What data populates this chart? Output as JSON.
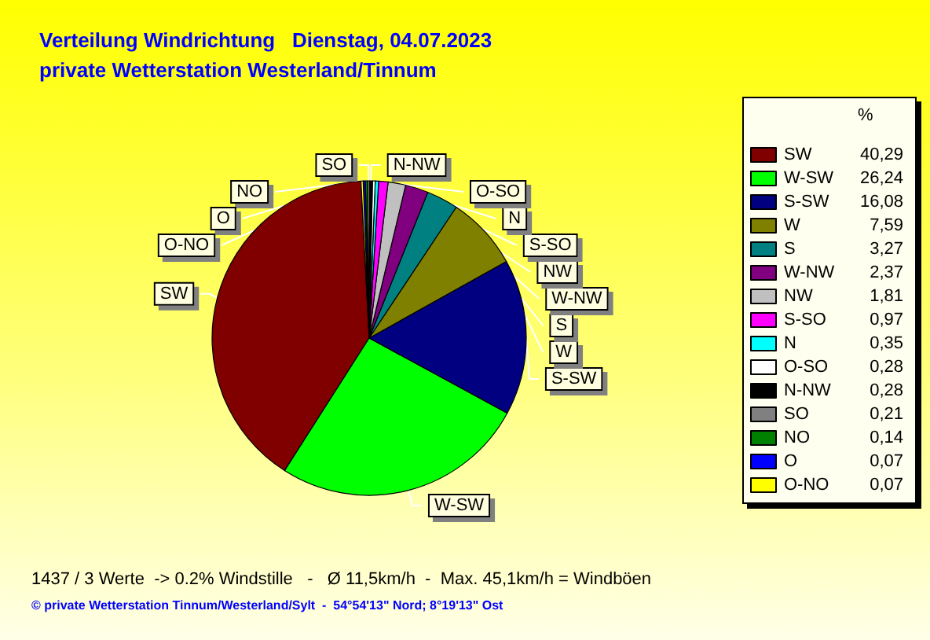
{
  "chart_data": {
    "type": "pie",
    "title": "Verteilung Windrichtung   Dienstag, 04.07.2023",
    "subtitle": "private Wetterstation Westerland/Tinnum",
    "legend_title": "%",
    "legend": "right",
    "categories": [
      "SW",
      "W-SW",
      "S-SW",
      "W",
      "S",
      "W-NW",
      "NW",
      "S-SO",
      "N",
      "O-SO",
      "N-NW",
      "SO",
      "NO",
      "O",
      "O-NO"
    ],
    "values": [
      40.29,
      26.24,
      16.08,
      7.59,
      3.27,
      2.37,
      1.81,
      0.97,
      0.35,
      0.28,
      0.28,
      0.21,
      0.14,
      0.07,
      0.07
    ],
    "value_labels": [
      "40,29",
      "26,24",
      "16,08",
      "7,59",
      "3,27",
      "2,37",
      "1,81",
      "0,97",
      "0,35",
      "0,28",
      "0,28",
      "0,21",
      "0,14",
      "0,07",
      "0,07"
    ],
    "colors": [
      "#800000",
      "#00ff00",
      "#000080",
      "#808000",
      "#008080",
      "#800080",
      "#c0c0c0",
      "#ff00ff",
      "#00ffff",
      "#ffffff",
      "#000000",
      "#808080",
      "#008000",
      "#0000ff",
      "#ffff00"
    ],
    "annotations": [
      "1437 / 3 Werte  -> 0.2% Windstille   -   Ø 11,5km/h  -  Max. 45,1km/h = Windböen",
      "© private Wetterstation Tinnum/Westerland/Sylt  -  54°54'13\" Nord; 8°19'13\" Ost"
    ]
  }
}
